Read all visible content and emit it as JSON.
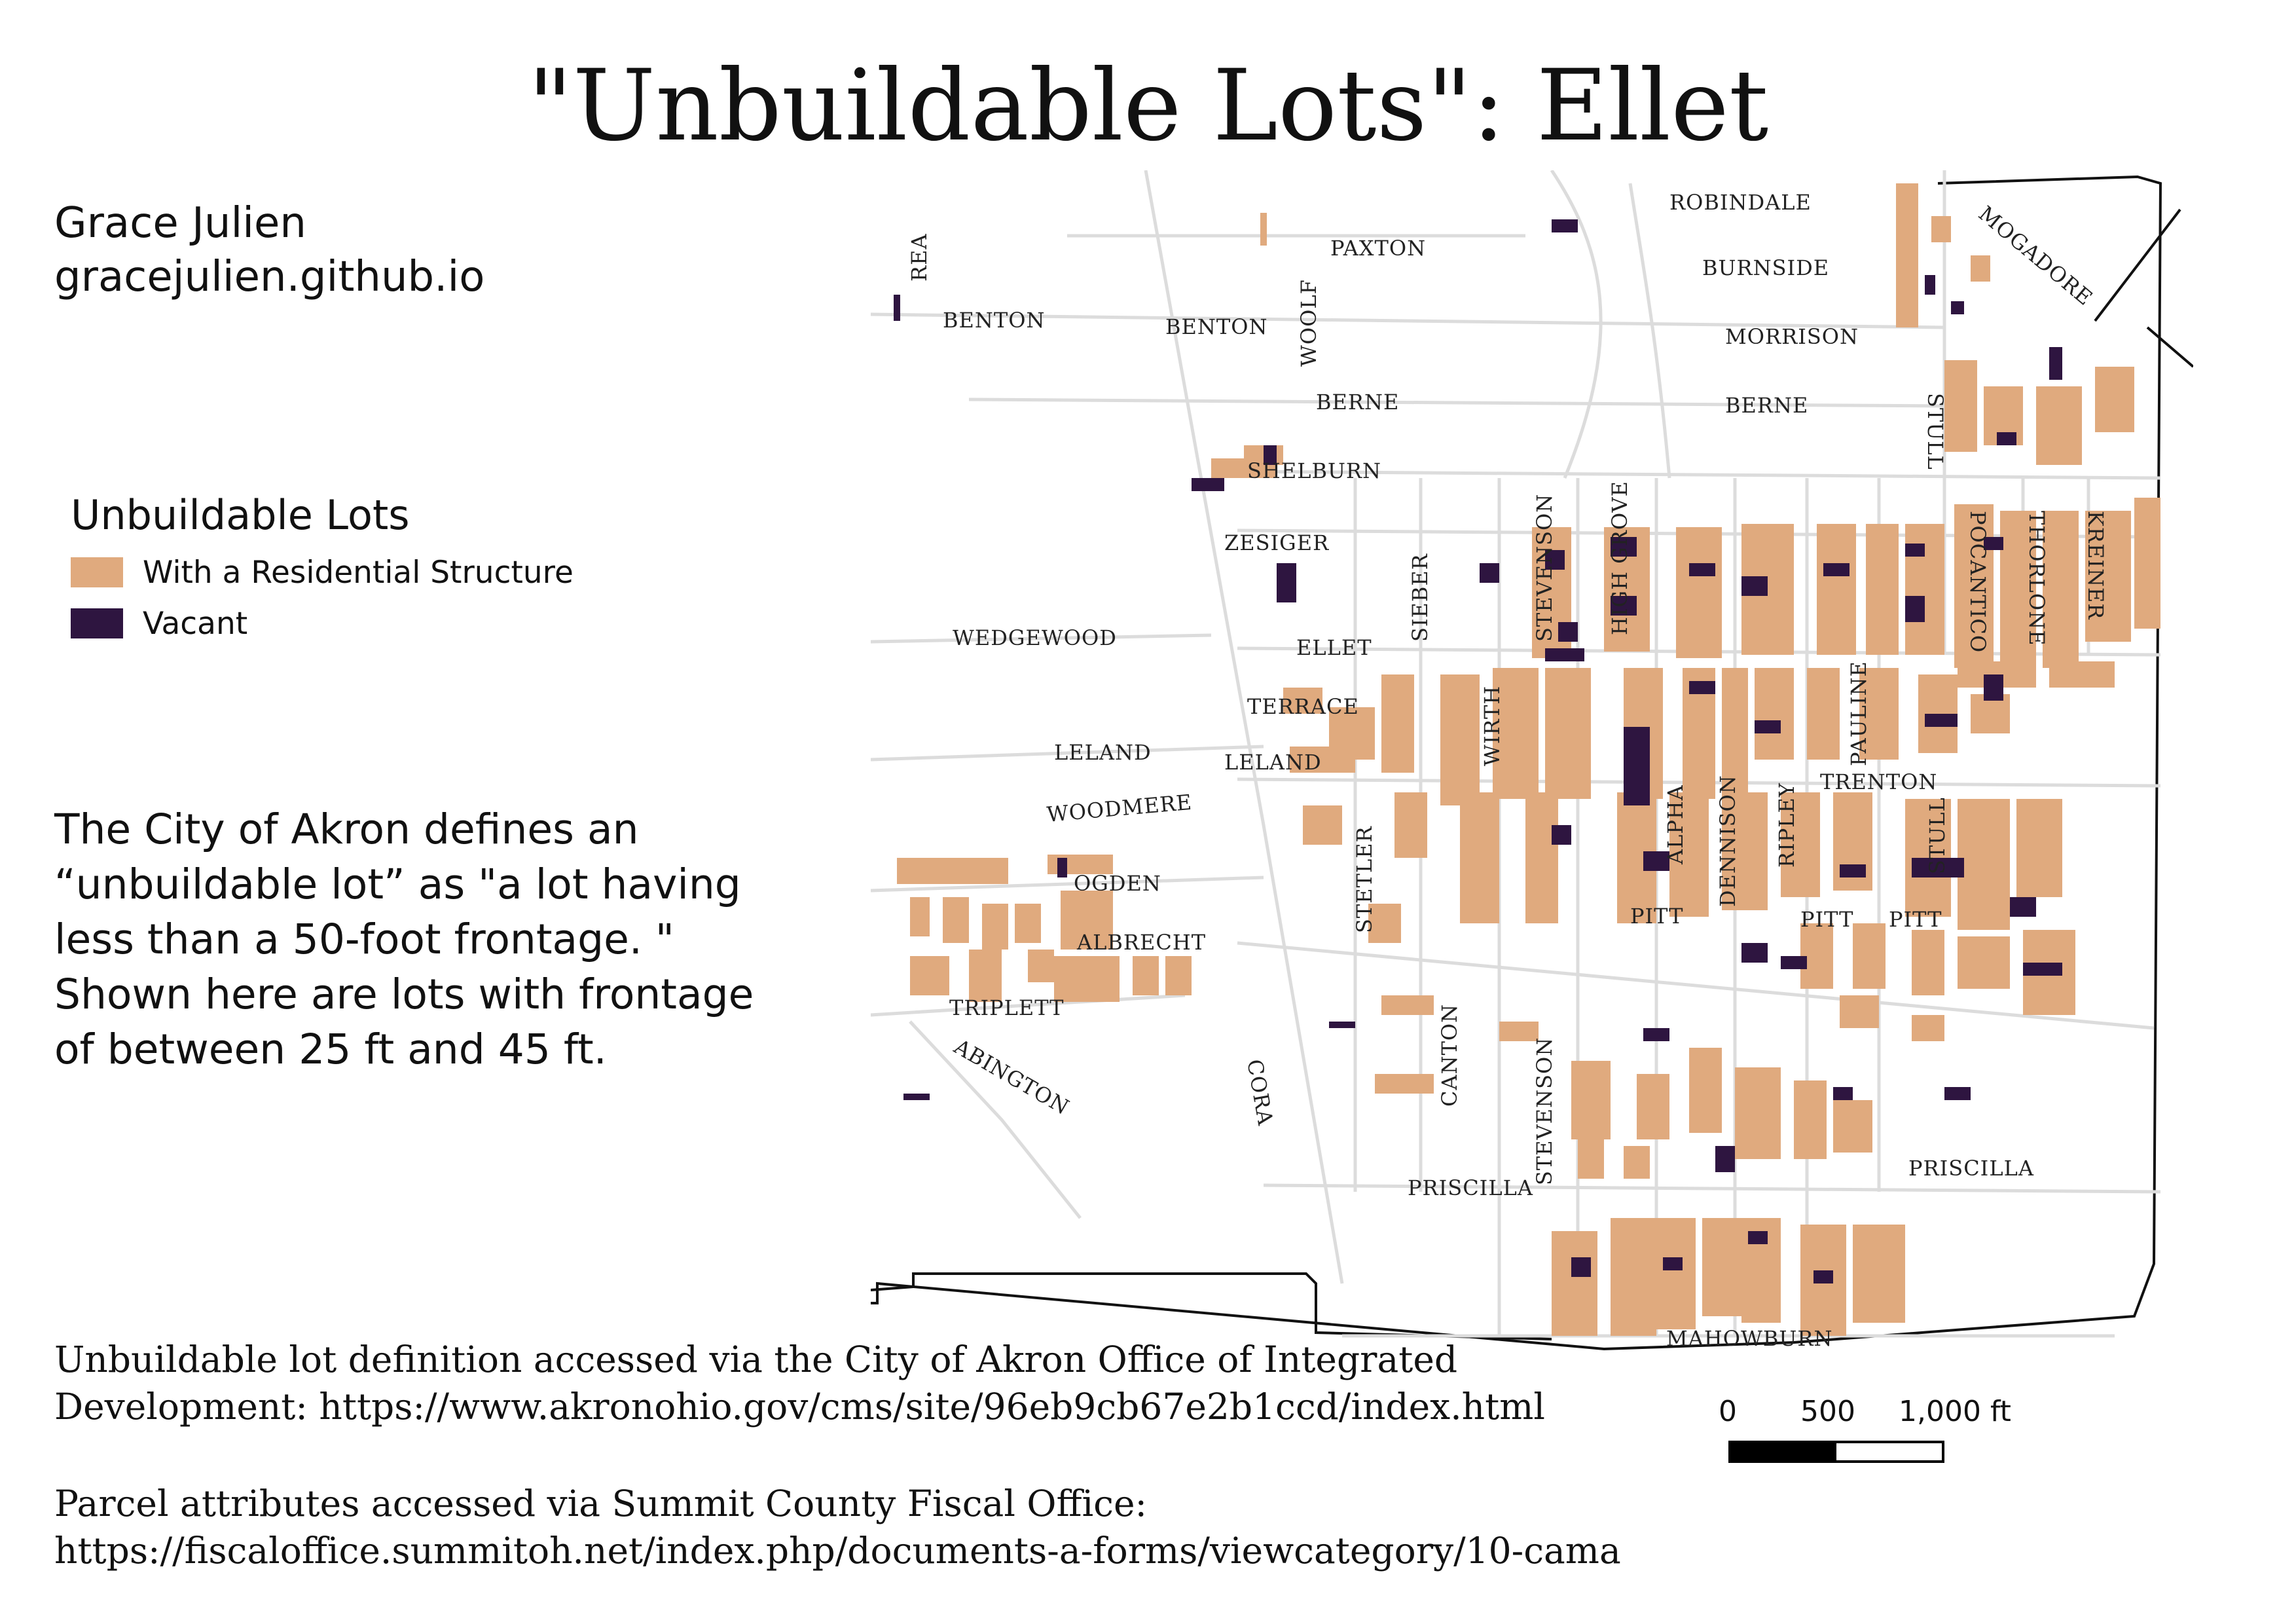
{
  "title": "\"Unbuildable Lots\": Ellet",
  "author": {
    "name": "Grace Julien",
    "site": "gracejulien.github.io"
  },
  "legend": {
    "title": "Unbuildable Lots",
    "items": [
      {
        "label": "With a Residential Structure",
        "color": "#e0aa7e"
      },
      {
        "label": "Vacant",
        "color": "#2e1540"
      }
    ]
  },
  "description": [
    "The City of Akron defines an",
    "“unbuildable lot” as \"a lot having",
    "less than a 50-foot frontage. \"",
    "Shown here are lots with frontage",
    "of between 25 ft and 45 ft."
  ],
  "sources": {
    "definition": [
      "Unbuildable lot definition accessed via the City of Akron Office of Integrated",
      "Development: https://www.akronohio.gov/cms/site/96eb9cb67e2b1ccd/index.html"
    ],
    "parcels": [
      "Parcel attributes accessed via Summit County Fiscal Office:",
      "https://fiscaloffice.summitoh.net/index.php/documents-a-forms/viewcategory/10-cama"
    ]
  },
  "scale": {
    "labels": [
      "0",
      "500",
      "1,000 ft"
    ]
  },
  "colors": {
    "residential": "#e0aa7e",
    "vacant": "#2e1540",
    "street": "#dcdcdc",
    "boundary": "#111111"
  },
  "streets": [
    "ROBINDALE",
    "MOGADORE",
    "PAXTON",
    "REA",
    "BURNSIDE",
    "BENTON",
    "BENTON",
    "WOOLF",
    "MORRISON",
    "BERNE",
    "BERNE",
    "STULL",
    "SHELBURN",
    "POCANTICO",
    "THORLONE",
    "KREINER",
    "ZESIGER",
    "STEVENSON",
    "HIGH GROVE",
    "SIEBER",
    "WEDGEWOOD",
    "ELLET",
    "TERRACE",
    "WIRTH",
    "PAULINE",
    "LELAND",
    "LELAND",
    "TRENTON",
    "WOODMERE",
    "ALPHA",
    "DENNISON",
    "RIPLEY",
    "STULL",
    "OGDEN",
    "STETLER",
    "PITT",
    "PITT",
    "PITT",
    "ALBRECHT",
    "TRIPLETT",
    "ABINGTON",
    "CORA",
    "CANTON",
    "STEVENSON",
    "PRISCILLA",
    "PRISCILLA",
    "MAHOWBURN"
  ]
}
